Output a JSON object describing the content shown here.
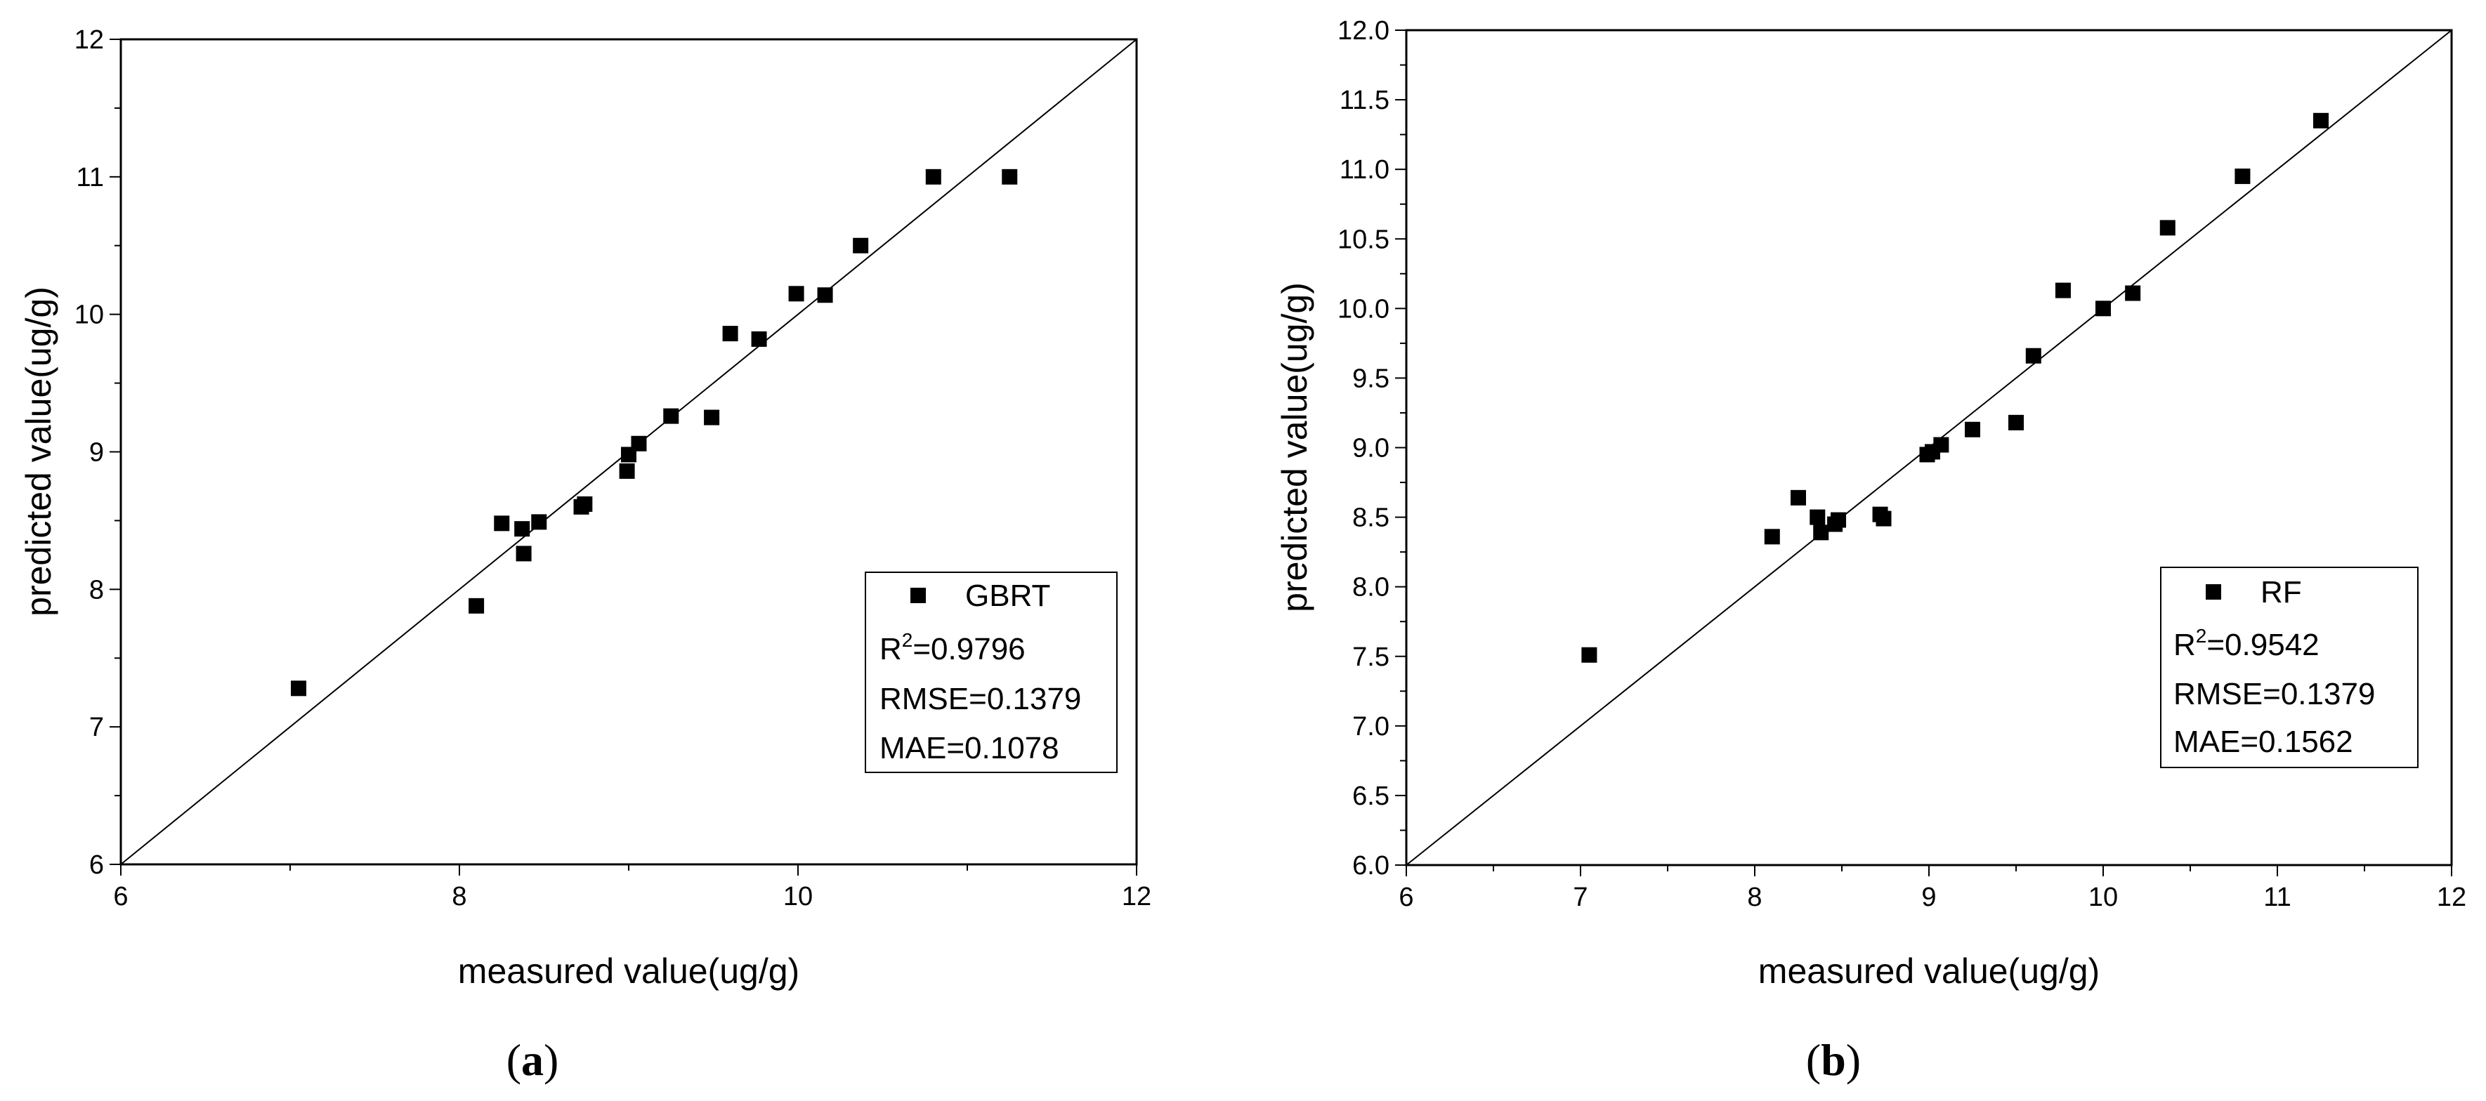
{
  "chart_data": [
    {
      "type": "scatter",
      "panel_label_open": "(",
      "panel_letter": "a",
      "panel_label_close": ")",
      "xlabel": "measured value(ug/g)",
      "ylabel": "predicted value(ug/g)",
      "xlim": [
        6,
        12
      ],
      "ylim": [
        6,
        12
      ],
      "x_major_ticks": [
        6,
        8,
        10,
        12
      ],
      "x_minor_step": 1,
      "x_tick_labels": [
        "6",
        "8",
        "10",
        "12"
      ],
      "y_major_ticks": [
        6,
        7,
        8,
        9,
        10,
        11,
        12
      ],
      "y_minor_step": 0.5,
      "y_tick_labels": [
        "6",
        "7",
        "8",
        "9",
        "10",
        "11",
        "12"
      ],
      "reference_line": {
        "from": [
          6,
          6
        ],
        "to": [
          12,
          12
        ],
        "label": "y = x"
      },
      "series": [
        {
          "name": "GBRT",
          "marker": "square",
          "x": [
            7.05,
            8.1,
            8.25,
            8.37,
            8.38,
            8.47,
            8.72,
            8.74,
            8.99,
            9.0,
            9.06,
            9.25,
            9.49,
            9.6,
            9.77,
            9.99,
            10.16,
            10.37,
            10.8,
            11.25
          ],
          "y": [
            7.28,
            7.88,
            8.48,
            8.44,
            8.26,
            8.49,
            8.6,
            8.62,
            8.86,
            8.98,
            9.06,
            9.26,
            9.25,
            9.86,
            9.82,
            10.15,
            10.14,
            10.5,
            11.0,
            11.0
          ]
        }
      ],
      "legend": {
        "position": "bottom-right",
        "series_label": "GBRT",
        "r2_prefix": "R",
        "r2_sup": "2",
        "r2_value": "=0.9796",
        "rmse": "RMSE=0.1379",
        "mae": "MAE=0.1078"
      }
    },
    {
      "type": "scatter",
      "panel_label_open": "(",
      "panel_letter": "b",
      "panel_label_close": ")",
      "xlabel": "measured value(ug/g)",
      "ylabel": "predicted value(ug/g)",
      "xlim": [
        6,
        12
      ],
      "ylim": [
        6,
        12
      ],
      "x_major_ticks": [
        6,
        7,
        8,
        9,
        10,
        11,
        12
      ],
      "x_minor_step": 0.5,
      "x_tick_labels": [
        "6",
        "7",
        "8",
        "9",
        "10",
        "11",
        "12"
      ],
      "y_major_ticks": [
        6,
        6.5,
        7,
        7.5,
        8,
        8.5,
        9,
        9.5,
        10,
        10.5,
        11,
        11.5,
        12
      ],
      "y_minor_step": 0.25,
      "y_tick_labels": [
        "6.0",
        "6.5",
        "7.0",
        "7.5",
        "8.0",
        "8.5",
        "9.0",
        "9.5",
        "10.0",
        "10.5",
        "11.0",
        "11.5",
        "12.0"
      ],
      "reference_line": {
        "from": [
          6,
          6
        ],
        "to": [
          12,
          12
        ],
        "label": "y = x"
      },
      "series": [
        {
          "name": "RF",
          "marker": "square",
          "x": [
            7.05,
            8.1,
            8.25,
            8.36,
            8.38,
            8.46,
            8.48,
            8.72,
            8.74,
            8.99,
            9.02,
            9.07,
            9.25,
            9.5,
            9.6,
            9.77,
            10.0,
            10.17,
            10.37,
            10.8,
            11.25
          ],
          "y": [
            7.51,
            8.36,
            8.64,
            8.5,
            8.39,
            8.45,
            8.48,
            8.52,
            8.49,
            8.95,
            8.97,
            9.02,
            9.13,
            9.18,
            9.66,
            10.13,
            10.0,
            10.11,
            10.58,
            10.95,
            11.35
          ]
        }
      ],
      "legend": {
        "position": "bottom-right",
        "series_label": "RF",
        "r2_prefix": "R",
        "r2_sup": "2",
        "r2_value": "=0.9542",
        "rmse": "RMSE=0.1379",
        "mae": "MAE=0.1562"
      }
    }
  ]
}
